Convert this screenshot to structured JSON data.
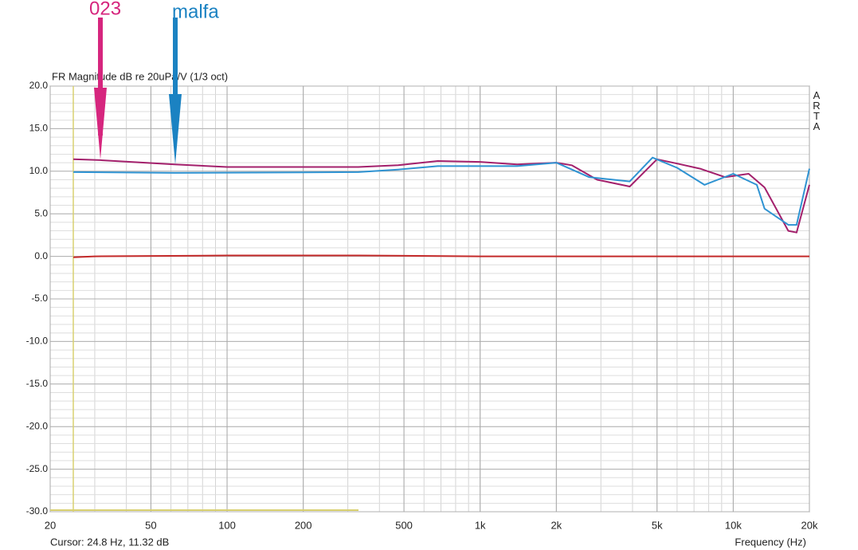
{
  "chart_data": {
    "type": "line",
    "title": "FR Magnitude dB re 20uPa/V (1/3 oct)",
    "watermark": "ARTA",
    "cursor_text": "Cursor: 24.8 Hz, 11.32 dB",
    "x_label": "Frequency (Hz)",
    "log_x": true,
    "grid": true,
    "minor_grid": true,
    "xlim": [
      20,
      20000
    ],
    "xticks": [
      20,
      50,
      100,
      200,
      500,
      {
        "value": 1000,
        "label": "1k"
      },
      {
        "value": 2000,
        "label": "2k"
      },
      {
        "value": 5000,
        "label": "5k"
      },
      {
        "value": 10000,
        "label": "10k"
      },
      {
        "value": 20000,
        "label": "20k"
      }
    ],
    "ylim": [
      -30,
      20
    ],
    "yticks": [
      {
        "value": 20,
        "label": "20.0"
      },
      {
        "value": 15,
        "label": "15.0"
      },
      {
        "value": 10,
        "label": "10.0"
      },
      {
        "value": 5,
        "label": "5.0"
      },
      {
        "value": 0,
        "label": "0.0"
      },
      {
        "value": -5,
        "label": "-5.0"
      },
      {
        "value": -10,
        "label": "-10.0"
      },
      {
        "value": -15,
        "label": "-15.0"
      },
      {
        "value": -20,
        "label": "-20.0"
      },
      {
        "value": -25,
        "label": "-25.0"
      },
      {
        "value": -30,
        "label": "-30.0"
      }
    ],
    "series": [
      {
        "name": "023",
        "color": "#a3206c",
        "x": [
          24.7,
          31.6,
          62,
          100,
          330,
          474,
          680,
          1000,
          1400,
          2000,
          2300,
          2900,
          3900,
          5000,
          6000,
          7400,
          9300,
          11500,
          13300,
          16500,
          17800,
          20000
        ],
        "values": [
          11.4,
          11.3,
          10.8,
          10.5,
          10.5,
          10.7,
          11.2,
          11.1,
          10.8,
          11.0,
          10.7,
          9.0,
          8.2,
          11.4,
          10.9,
          10.3,
          9.3,
          9.7,
          8.1,
          3.0,
          2.8,
          8.4
        ]
      },
      {
        "name": "malfa",
        "color": "#2f93d2",
        "x": [
          24.7,
          62,
          330,
          474,
          680,
          1000,
          1400,
          2000,
          2700,
          3900,
          4800,
          6000,
          7700,
          10000,
          12400,
          13300,
          16500,
          17800,
          20000
        ],
        "values": [
          9.9,
          9.8,
          9.9,
          10.2,
          10.6,
          10.6,
          10.6,
          11.0,
          9.3,
          8.8,
          11.6,
          10.4,
          8.4,
          9.7,
          8.4,
          5.6,
          3.7,
          3.7,
          10.3
        ]
      },
      {
        "color": "#c42a2a",
        "x": [
          24.7,
          30,
          100,
          330,
          1000,
          20000
        ],
        "values": [
          -0.1,
          0,
          0.1,
          0.1,
          0,
          0
        ]
      }
    ]
  }
}
